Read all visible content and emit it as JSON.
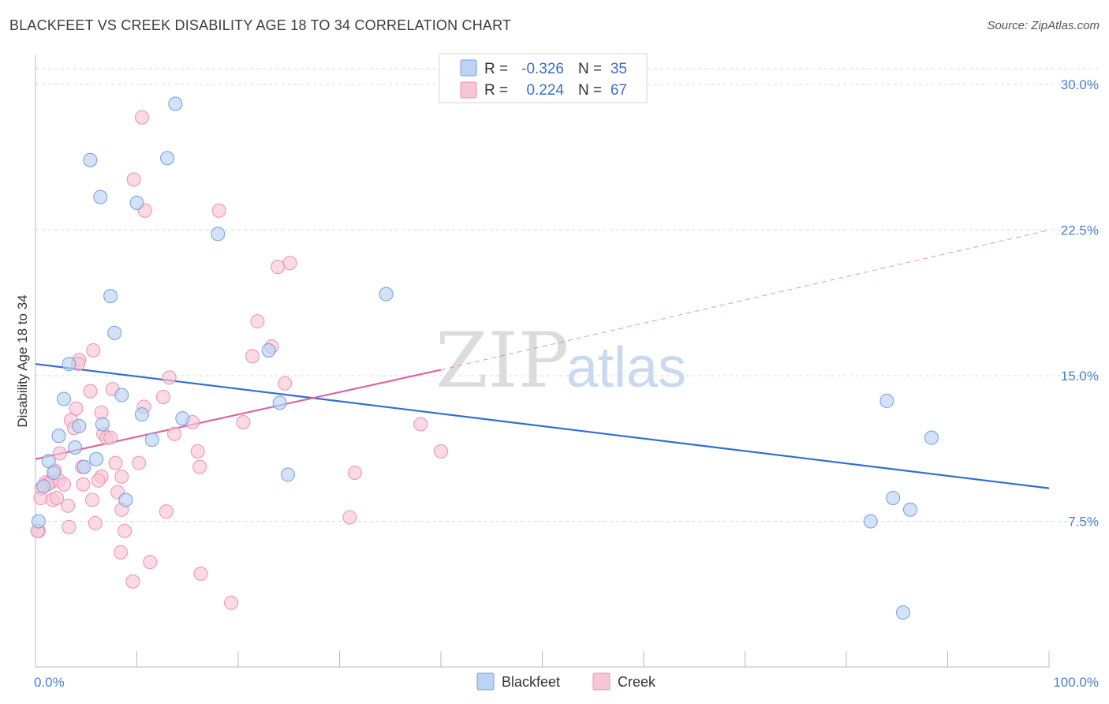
{
  "title": "BLACKFEET VS CREEK DISABILITY AGE 18 TO 34 CORRELATION CHART",
  "source": "Source: ZipAtlas.com",
  "colors": {
    "blackfeet": "#6f9fe0",
    "blackfeet_fill": "#bcd3f3",
    "blackfeet_line": "#2f6fd0",
    "creek": "#ef8fb0",
    "creek_fill": "#f7c6d6",
    "creek_line": "#e0659a",
    "axis_text": "#4a7fd0",
    "grid": "#d8d8d8"
  },
  "legend": {
    "r_label": "R =",
    "n_label": "N =",
    "rows": [
      {
        "series": "Blackfeet",
        "r": "-0.326",
        "n": "35"
      },
      {
        "series": "Creek",
        "r": "0.224",
        "n": "67"
      }
    ]
  },
  "chart_data": {
    "type": "scatter",
    "title": "BLACKFEET VS CREEK DISABILITY AGE 18 TO 34 CORRELATION CHART",
    "xlabel": "",
    "ylabel": "Disability Age 18 to 34",
    "xlim": [
      0,
      100
    ],
    "ylim": [
      0,
      31.5
    ],
    "x_tick_labels": [
      "0.0%",
      "100.0%"
    ],
    "y_ticks": [
      7.5,
      15.0,
      22.5,
      30.0
    ],
    "y_tick_labels": [
      "7.5%",
      "15.0%",
      "22.5%",
      "30.0%"
    ],
    "grid": true,
    "legend_position": "bottom-center",
    "series": [
      {
        "name": "Blackfeet",
        "points": [
          [
            13.8,
            29.0
          ],
          [
            5.4,
            26.1
          ],
          [
            13.0,
            26.2
          ],
          [
            6.4,
            24.2
          ],
          [
            10.0,
            23.9
          ],
          [
            18.0,
            22.3
          ],
          [
            7.4,
            19.1
          ],
          [
            34.6,
            19.2
          ],
          [
            7.8,
            17.2
          ],
          [
            23.0,
            16.3
          ],
          [
            3.3,
            15.6
          ],
          [
            8.5,
            14.0
          ],
          [
            2.8,
            13.8
          ],
          [
            24.1,
            13.6
          ],
          [
            10.5,
            13.0
          ],
          [
            14.5,
            12.8
          ],
          [
            4.3,
            12.4
          ],
          [
            6.6,
            12.5
          ],
          [
            2.3,
            11.9
          ],
          [
            11.5,
            11.7
          ],
          [
            3.9,
            11.3
          ],
          [
            1.3,
            10.6
          ],
          [
            6.0,
            10.7
          ],
          [
            4.8,
            10.3
          ],
          [
            1.8,
            10.0
          ],
          [
            24.9,
            9.9
          ],
          [
            0.8,
            9.3
          ],
          [
            8.9,
            8.6
          ],
          [
            0.3,
            7.5
          ],
          [
            84.0,
            13.7
          ],
          [
            88.4,
            11.8
          ],
          [
            84.6,
            8.7
          ],
          [
            86.3,
            8.1
          ],
          [
            82.4,
            7.5
          ],
          [
            85.6,
            2.8
          ]
        ],
        "trend": {
          "x": [
            0,
            100
          ],
          "y": [
            15.6,
            9.2
          ],
          "style": "solid"
        }
      },
      {
        "name": "Creek",
        "points": [
          [
            10.5,
            28.3
          ],
          [
            9.7,
            25.1
          ],
          [
            10.8,
            23.5
          ],
          [
            18.1,
            23.5
          ],
          [
            25.1,
            20.8
          ],
          [
            23.9,
            20.6
          ],
          [
            21.9,
            17.8
          ],
          [
            5.7,
            16.3
          ],
          [
            23.3,
            16.5
          ],
          [
            21.4,
            16.0
          ],
          [
            4.3,
            15.8
          ],
          [
            4.2,
            15.6
          ],
          [
            13.2,
            14.9
          ],
          [
            7.6,
            14.3
          ],
          [
            5.4,
            14.2
          ],
          [
            24.6,
            14.6
          ],
          [
            12.6,
            13.9
          ],
          [
            10.7,
            13.4
          ],
          [
            4.0,
            13.3
          ],
          [
            6.5,
            13.1
          ],
          [
            3.5,
            12.7
          ],
          [
            15.5,
            12.6
          ],
          [
            20.5,
            12.6
          ],
          [
            38.0,
            12.5
          ],
          [
            3.8,
            12.3
          ],
          [
            6.7,
            12.0
          ],
          [
            13.7,
            12.0
          ],
          [
            7.0,
            11.8
          ],
          [
            7.4,
            11.8
          ],
          [
            2.4,
            11.0
          ],
          [
            16.0,
            11.1
          ],
          [
            40.0,
            11.1
          ],
          [
            7.9,
            10.5
          ],
          [
            10.2,
            10.5
          ],
          [
            4.6,
            10.3
          ],
          [
            16.2,
            10.3
          ],
          [
            1.9,
            10.1
          ],
          [
            31.5,
            10.0
          ],
          [
            8.5,
            9.8
          ],
          [
            6.5,
            9.8
          ],
          [
            1.0,
            9.5
          ],
          [
            1.5,
            9.5
          ],
          [
            2.3,
            9.6
          ],
          [
            6.2,
            9.6
          ],
          [
            1.2,
            9.4
          ],
          [
            2.8,
            9.4
          ],
          [
            4.7,
            9.4
          ],
          [
            8.1,
            9.0
          ],
          [
            0.6,
            9.2
          ],
          [
            0.5,
            8.7
          ],
          [
            1.7,
            8.6
          ],
          [
            2.1,
            8.7
          ],
          [
            5.6,
            8.6
          ],
          [
            3.2,
            8.3
          ],
          [
            8.5,
            8.1
          ],
          [
            12.9,
            8.0
          ],
          [
            31.0,
            7.7
          ],
          [
            5.9,
            7.4
          ],
          [
            3.3,
            7.2
          ],
          [
            8.8,
            7.0
          ],
          [
            0.3,
            7.0
          ],
          [
            8.4,
            5.9
          ],
          [
            11.3,
            5.4
          ],
          [
            16.3,
            4.8
          ],
          [
            9.6,
            4.4
          ],
          [
            19.3,
            3.3
          ],
          [
            0.2,
            7.0
          ]
        ],
        "trend": {
          "x": [
            0,
            40
          ],
          "y": [
            10.7,
            15.3
          ],
          "style": "solid"
        },
        "trend_extension": {
          "x": [
            40,
            100
          ],
          "y": [
            15.3,
            22.5
          ],
          "style": "dashed"
        }
      }
    ]
  },
  "bottom_legend": [
    {
      "name": "Blackfeet"
    },
    {
      "name": "Creek"
    }
  ]
}
